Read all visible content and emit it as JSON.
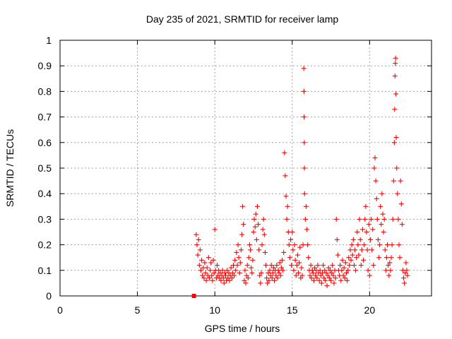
{
  "chart_data": {
    "type": "scatter",
    "title": "Day 235 of 2021, SRMTID for receiver lamp",
    "xlabel": "GPS time / hours",
    "ylabel": "SRMTID / TECUs",
    "xlim": [
      0,
      24
    ],
    "ylim": [
      0,
      1
    ],
    "x_ticks": [
      0,
      5,
      10,
      15,
      20
    ],
    "x_tick_labels": [
      "0",
      "5",
      "10",
      "15",
      "20"
    ],
    "y_ticks": [
      0,
      0.1,
      0.2,
      0.3,
      0.4,
      0.5,
      0.6,
      0.7,
      0.8,
      0.9,
      1
    ],
    "y_tick_labels": [
      "0",
      "0.1",
      "0.2",
      "0.3",
      "0.4",
      "0.5",
      "0.6",
      "0.7",
      "0.8",
      "0.9",
      "1"
    ],
    "grid": true,
    "marker": "plus",
    "color": "#ff0000",
    "special_marker": {
      "shape": "square",
      "x": 8.65,
      "y": 0.0
    },
    "series": [
      {
        "name": "SRMTID",
        "points": [
          [
            8.8,
            0.24
          ],
          [
            8.85,
            0.2
          ],
          [
            8.9,
            0.16
          ],
          [
            8.95,
            0.22
          ],
          [
            9.0,
            0.12
          ],
          [
            9.05,
            0.18
          ],
          [
            9.1,
            0.1
          ],
          [
            9.15,
            0.14
          ],
          [
            9.2,
            0.08
          ],
          [
            9.25,
            0.11
          ],
          [
            9.3,
            0.07
          ],
          [
            9.35,
            0.13
          ],
          [
            9.4,
            0.09
          ],
          [
            9.45,
            0.06
          ],
          [
            9.5,
            0.11
          ],
          [
            9.55,
            0.08
          ],
          [
            9.6,
            0.15
          ],
          [
            9.65,
            0.07
          ],
          [
            9.7,
            0.1
          ],
          [
            9.75,
            0.13
          ],
          [
            9.8,
            0.08
          ],
          [
            9.85,
            0.06
          ],
          [
            9.9,
            0.14
          ],
          [
            9.95,
            0.09
          ],
          [
            10.0,
            0.26
          ],
          [
            10.05,
            0.1
          ],
          [
            10.1,
            0.07
          ],
          [
            10.15,
            0.12
          ],
          [
            10.2,
            0.08
          ],
          [
            10.25,
            0.1
          ],
          [
            10.3,
            0.07
          ],
          [
            10.35,
            0.09
          ],
          [
            10.4,
            0.06
          ],
          [
            10.45,
            0.08
          ],
          [
            10.5,
            0.1
          ],
          [
            10.55,
            0.07
          ],
          [
            10.6,
            0.05
          ],
          [
            10.65,
            0.09
          ],
          [
            10.7,
            0.08
          ],
          [
            10.75,
            0.06
          ],
          [
            10.8,
            0.1
          ],
          [
            10.85,
            0.07
          ],
          [
            10.9,
            0.09
          ],
          [
            10.95,
            0.06
          ],
          [
            11.0,
            0.08
          ],
          [
            11.05,
            0.11
          ],
          [
            11.1,
            0.07
          ],
          [
            11.15,
            0.09
          ],
          [
            11.2,
            0.12
          ],
          [
            11.25,
            0.08
          ],
          [
            11.3,
            0.14
          ],
          [
            11.35,
            0.1
          ],
          [
            11.4,
            0.17
          ],
          [
            11.45,
            0.12
          ],
          [
            11.5,
            0.2
          ],
          [
            11.55,
            0.15
          ],
          [
            11.6,
            0.09
          ],
          [
            11.65,
            0.13
          ],
          [
            11.7,
            0.18
          ],
          [
            11.75,
            0.24
          ],
          [
            11.8,
            0.35
          ],
          [
            11.85,
            0.28
          ],
          [
            11.9,
            0.06
          ],
          [
            11.95,
            0.1
          ],
          [
            12.0,
            0.05
          ],
          [
            12.05,
            0.08
          ],
          [
            12.1,
            0.12
          ],
          [
            12.15,
            0.07
          ],
          [
            12.2,
            0.15
          ],
          [
            12.25,
            0.2
          ],
          [
            12.3,
            0.18
          ],
          [
            12.35,
            0.11
          ],
          [
            12.4,
            0.09
          ],
          [
            12.45,
            0.14
          ],
          [
            12.5,
            0.25
          ],
          [
            12.55,
            0.3
          ],
          [
            12.6,
            0.27
          ],
          [
            12.65,
            0.32
          ],
          [
            12.7,
            0.22
          ],
          [
            12.75,
            0.35
          ],
          [
            12.8,
            0.28
          ],
          [
            12.85,
            0.18
          ],
          [
            12.9,
            0.08
          ],
          [
            12.95,
            0.05
          ],
          [
            13.0,
            0.09
          ],
          [
            13.05,
            0.2
          ],
          [
            13.1,
            0.26
          ],
          [
            13.15,
            0.3
          ],
          [
            13.2,
            0.24
          ],
          [
            13.25,
            0.17
          ],
          [
            13.3,
            0.12
          ],
          [
            13.35,
            0.07
          ],
          [
            13.4,
            0.05
          ],
          [
            13.45,
            0.09
          ],
          [
            13.5,
            0.06
          ],
          [
            13.55,
            0.1
          ],
          [
            13.6,
            0.08
          ],
          [
            13.65,
            0.12
          ],
          [
            13.7,
            0.07
          ],
          [
            13.75,
            0.09
          ],
          [
            13.8,
            0.11
          ],
          [
            13.85,
            0.06
          ],
          [
            13.9,
            0.1
          ],
          [
            13.95,
            0.08
          ],
          [
            14.0,
            0.12
          ],
          [
            14.05,
            0.07
          ],
          [
            14.1,
            0.1
          ],
          [
            14.15,
            0.09
          ],
          [
            14.2,
            0.13
          ],
          [
            14.25,
            0.08
          ],
          [
            14.3,
            0.11
          ],
          [
            14.35,
            0.14
          ],
          [
            14.4,
            0.1
          ],
          [
            14.45,
            0.17
          ],
          [
            14.5,
            0.56
          ],
          [
            14.55,
            0.47
          ],
          [
            14.6,
            0.39
          ],
          [
            14.65,
            0.3
          ],
          [
            14.7,
            0.35
          ],
          [
            14.75,
            0.25
          ],
          [
            14.8,
            0.2
          ],
          [
            14.85,
            0.15
          ],
          [
            14.9,
            0.22
          ],
          [
            14.95,
            0.12
          ],
          [
            15.0,
            0.25
          ],
          [
            15.05,
            0.18
          ],
          [
            15.1,
            0.1
          ],
          [
            15.15,
            0.2
          ],
          [
            15.2,
            0.14
          ],
          [
            15.25,
            0.08
          ],
          [
            15.3,
            0.12
          ],
          [
            15.35,
            0.16
          ],
          [
            15.4,
            0.09
          ],
          [
            15.45,
            0.13
          ],
          [
            15.5,
            0.19
          ],
          [
            15.55,
            0.07
          ],
          [
            15.6,
            0.11
          ],
          [
            15.65,
            0.08
          ],
          [
            15.7,
            0.2
          ],
          [
            15.75,
            0.89
          ],
          [
            15.76,
            0.8
          ],
          [
            15.77,
            0.7
          ],
          [
            15.78,
            0.6
          ],
          [
            15.79,
            0.5
          ],
          [
            15.8,
            0.4
          ],
          [
            15.85,
            0.3
          ],
          [
            15.9,
            0.35
          ],
          [
            15.95,
            0.26
          ],
          [
            16.0,
            0.2
          ],
          [
            16.05,
            0.15
          ],
          [
            16.1,
            0.1
          ],
          [
            16.15,
            0.08
          ],
          [
            16.2,
            0.12
          ],
          [
            16.25,
            0.07
          ],
          [
            16.3,
            0.1
          ],
          [
            16.35,
            0.09
          ],
          [
            16.4,
            0.06
          ],
          [
            16.45,
            0.11
          ],
          [
            16.5,
            0.08
          ],
          [
            16.55,
            0.1
          ],
          [
            16.6,
            0.07
          ],
          [
            16.65,
            0.12
          ],
          [
            16.7,
            0.09
          ],
          [
            16.75,
            0.06
          ],
          [
            16.8,
            0.1
          ],
          [
            16.85,
            0.08
          ],
          [
            16.9,
            0.05
          ],
          [
            16.95,
            0.09
          ],
          [
            17.0,
            0.12
          ],
          [
            17.05,
            0.07
          ],
          [
            17.1,
            0.1
          ],
          [
            17.15,
            0.06
          ],
          [
            17.2,
            0.09
          ],
          [
            17.25,
            0.04
          ],
          [
            17.3,
            0.08
          ],
          [
            17.35,
            0.11
          ],
          [
            17.4,
            0.07
          ],
          [
            17.45,
            0.1
          ],
          [
            17.5,
            0.06
          ],
          [
            17.55,
            0.09
          ],
          [
            17.6,
            0.12
          ],
          [
            17.65,
            0.08
          ],
          [
            17.7,
            0.05
          ],
          [
            17.75,
            0.1
          ],
          [
            17.8,
            0.07
          ],
          [
            17.85,
            0.3
          ],
          [
            17.9,
            0.22
          ],
          [
            17.95,
            0.16
          ],
          [
            18.0,
            0.1
          ],
          [
            18.05,
            0.08
          ],
          [
            18.1,
            0.12
          ],
          [
            18.15,
            0.06
          ],
          [
            18.2,
            0.1
          ],
          [
            18.25,
            0.14
          ],
          [
            18.3,
            0.08
          ],
          [
            18.35,
            0.11
          ],
          [
            18.4,
            0.07
          ],
          [
            18.45,
            0.13
          ],
          [
            18.5,
            0.09
          ],
          [
            18.55,
            0.06
          ],
          [
            18.6,
            0.1
          ],
          [
            18.65,
            0.15
          ],
          [
            18.7,
            0.12
          ],
          [
            18.75,
            0.18
          ],
          [
            18.8,
            0.14
          ],
          [
            18.85,
            0.2
          ],
          [
            18.9,
            0.16
          ],
          [
            18.95,
            0.22
          ],
          [
            19.0,
            0.12
          ],
          [
            19.05,
            0.18
          ],
          [
            19.1,
            0.1
          ],
          [
            19.15,
            0.15
          ],
          [
            19.2,
            0.25
          ],
          [
            19.25,
            0.2
          ],
          [
            19.3,
            0.16
          ],
          [
            19.35,
            0.3
          ],
          [
            19.4,
            0.22
          ],
          [
            19.45,
            0.12
          ],
          [
            19.5,
            0.18
          ],
          [
            19.55,
            0.26
          ],
          [
            19.6,
            0.14
          ],
          [
            19.65,
            0.2
          ],
          [
            19.7,
            0.3
          ],
          [
            19.75,
            0.35
          ],
          [
            19.8,
            0.25
          ],
          [
            19.85,
            0.18
          ],
          [
            19.9,
            0.1
          ],
          [
            19.95,
            0.28
          ],
          [
            20.0,
            0.08
          ],
          [
            20.05,
            0.22
          ],
          [
            20.1,
            0.3
          ],
          [
            20.15,
            0.18
          ],
          [
            20.2,
            0.26
          ],
          [
            20.25,
            0.12
          ],
          [
            20.3,
            0.5
          ],
          [
            20.35,
            0.54
          ],
          [
            20.4,
            0.45
          ],
          [
            20.45,
            0.38
          ],
          [
            20.5,
            0.3
          ],
          [
            20.55,
            0.22
          ],
          [
            20.6,
            0.15
          ],
          [
            20.65,
            0.2
          ],
          [
            20.7,
            0.35
          ],
          [
            20.75,
            0.28
          ],
          [
            20.8,
            0.4
          ],
          [
            20.85,
            0.32
          ],
          [
            20.9,
            0.25
          ],
          [
            20.95,
            0.3
          ],
          [
            21.0,
            0.18
          ],
          [
            21.05,
            0.1
          ],
          [
            21.1,
            0.15
          ],
          [
            21.15,
            0.2
          ],
          [
            21.2,
            0.12
          ],
          [
            21.25,
            0.08
          ],
          [
            21.3,
            0.13
          ],
          [
            21.35,
            0.1
          ],
          [
            21.4,
            0.15
          ],
          [
            21.45,
            0.2
          ],
          [
            21.5,
            0.3
          ],
          [
            21.55,
            0.45
          ],
          [
            21.6,
            0.6
          ],
          [
            21.62,
            0.73
          ],
          [
            21.64,
            0.86
          ],
          [
            21.66,
            0.91
          ],
          [
            21.68,
            0.93
          ],
          [
            21.7,
            0.79
          ],
          [
            21.72,
            0.62
          ],
          [
            21.75,
            0.5
          ],
          [
            21.8,
            0.4
          ],
          [
            21.85,
            0.3
          ],
          [
            21.9,
            0.2
          ],
          [
            21.95,
            0.15
          ],
          [
            22.0,
            0.45
          ],
          [
            22.05,
            0.36
          ],
          [
            22.1,
            0.28
          ],
          [
            22.15,
            0.1
          ],
          [
            22.2,
            0.07
          ],
          [
            22.25,
            0.05
          ],
          [
            22.3,
            0.09
          ],
          [
            22.35,
            0.13
          ],
          [
            22.4,
            0.1
          ],
          [
            22.45,
            0.08
          ]
        ]
      }
    ]
  }
}
